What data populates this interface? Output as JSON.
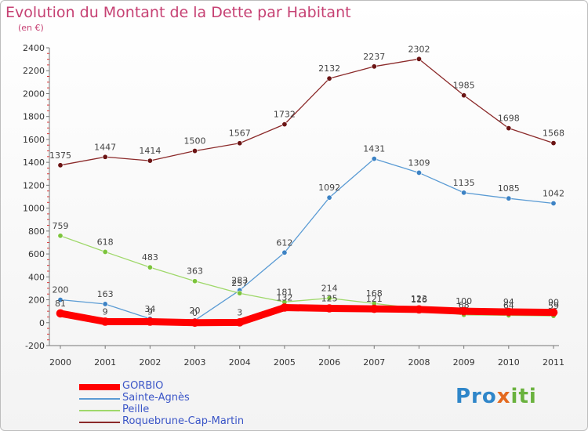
{
  "chart_data": {
    "type": "line",
    "title": "Evolution du Montant de la Dette par Habitant",
    "unit_label": "(en €)",
    "x": [
      "2000",
      "2001",
      "2002",
      "2003",
      "2004",
      "2005",
      "2006",
      "2007",
      "2008",
      "2009",
      "2010",
      "2011"
    ],
    "ylim": [
      -200,
      2400
    ],
    "yticks": [
      -200,
      0,
      200,
      400,
      600,
      800,
      1000,
      1200,
      1400,
      1600,
      1800,
      2000,
      2200,
      2400
    ],
    "grid": false,
    "legend_position": "bottom-left",
    "series": [
      {
        "name": "Roquebrune-Cap-Martin",
        "color": "#8b2a2a",
        "point_color": "#6b1414",
        "width": 1.3,
        "values": [
          1375,
          1447,
          1414,
          1500,
          1567,
          1732,
          2132,
          2237,
          2302,
          1985,
          1698,
          1568
        ],
        "labels": [
          "1375",
          "1447",
          "1414",
          "1500",
          "1567",
          "1732",
          "2132",
          "2237",
          "2302",
          "1985",
          "1698",
          "1568"
        ]
      },
      {
        "name": "Sainte-Agnès",
        "color": "#5a9bd4",
        "point_color": "#3c82c4",
        "width": 1.3,
        "values": [
          200,
          163,
          34,
          20,
          283,
          612,
          1092,
          1431,
          1309,
          1135,
          1085,
          1042
        ],
        "labels": [
          "200",
          "163",
          "34",
          "20",
          "283",
          "612",
          "1092",
          "1431",
          "1309",
          "1135",
          "1085",
          "1042"
        ]
      },
      {
        "name": "Peille",
        "color": "#9fd86a",
        "point_color": "#7cc43c",
        "width": 1.3,
        "values": [
          759,
          618,
          483,
          363,
          257,
          181,
          214,
          168,
          123,
          68,
          64,
          59
        ],
        "labels": [
          "759",
          "618",
          "483",
          "363",
          "257",
          "181",
          "214",
          "168",
          "123",
          "68",
          "64",
          "59"
        ]
      },
      {
        "name": "GORBIO",
        "color": "#ff0000",
        "point_color": "#ff0000",
        "width": 9,
        "values": [
          81,
          9,
          9,
          0,
          3,
          132,
          125,
          121,
          116,
          100,
          94,
          90
        ],
        "labels": [
          "81",
          "9",
          "9",
          "0",
          "3",
          "132",
          "125",
          "121",
          "116",
          "100",
          "94",
          "90"
        ]
      }
    ],
    "legend": [
      "GORBIO",
      "Sainte-Agnès",
      "Peille",
      "Roquebrune-Cap-Martin"
    ]
  },
  "legend_colors": {
    "GORBIO": "#ff0000",
    "Sainte-Agnès": "#5a9bd4",
    "Peille": "#9fd86a",
    "Roquebrune-Cap-Martin": "#8b2a2a"
  },
  "brand": {
    "p1": "Pro",
    "p2": "x",
    "p3": "iti"
  }
}
